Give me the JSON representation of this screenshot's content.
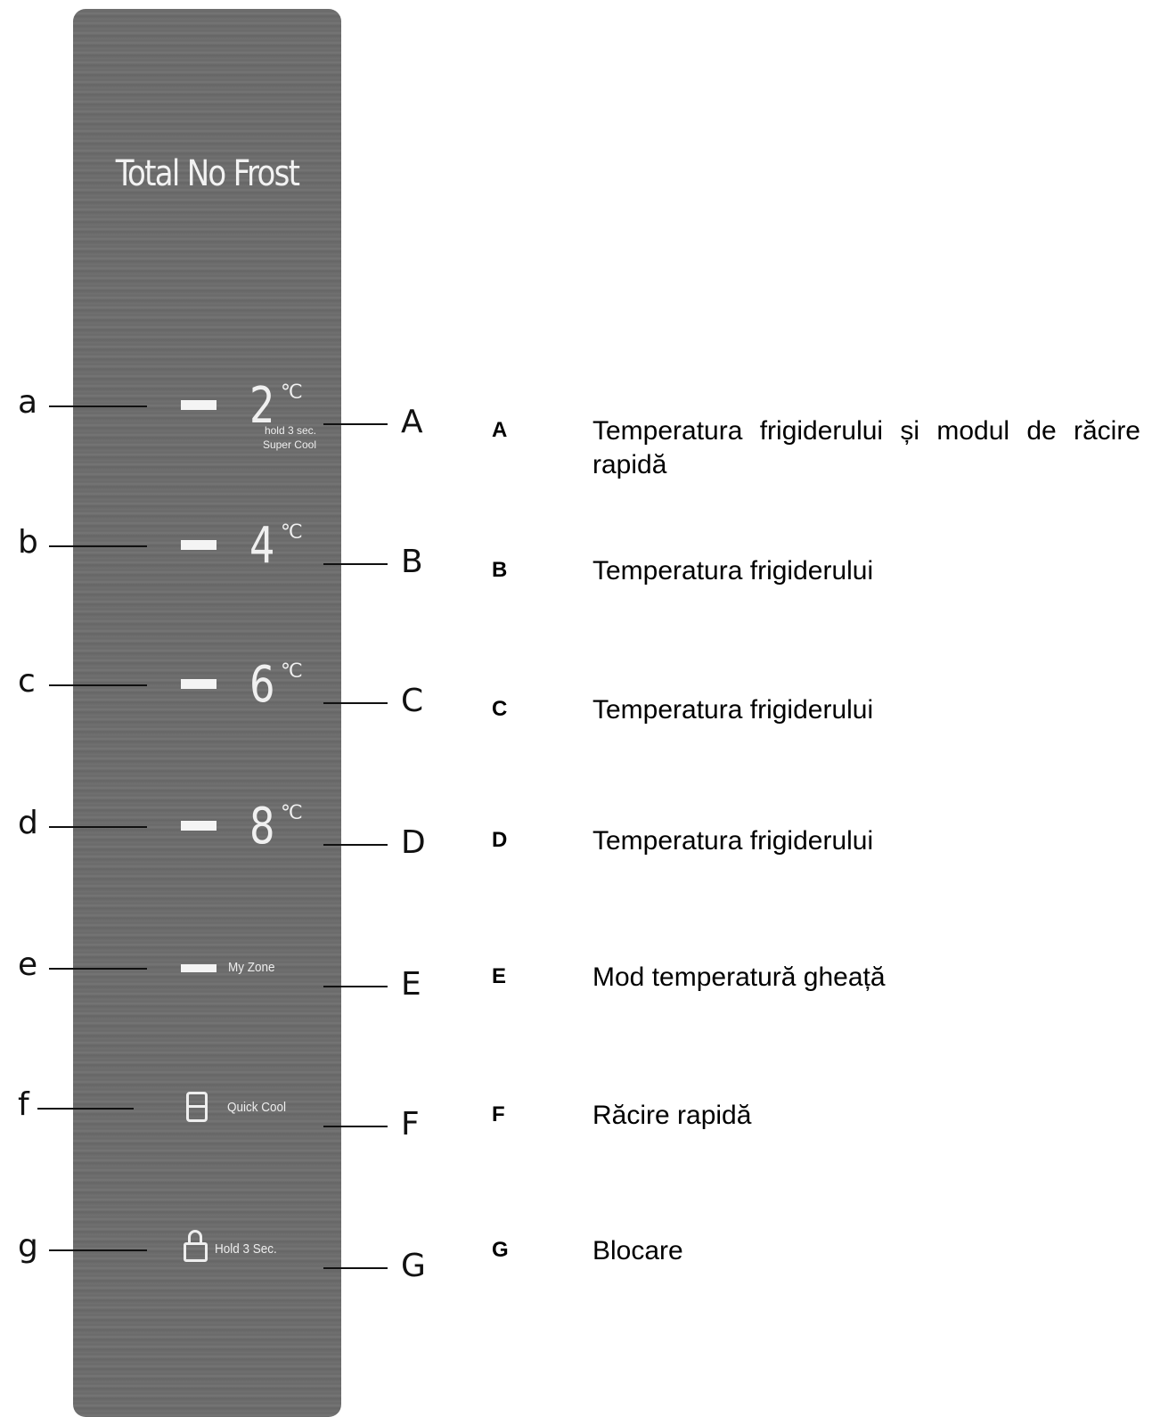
{
  "panel": {
    "title": "Total No Frost",
    "items": [
      {
        "left": "a",
        "value": "2",
        "unit": "℃",
        "caption": [
          "hold 3 sec.",
          "Super Cool"
        ],
        "right": "A"
      },
      {
        "left": "b",
        "value": "4",
        "unit": "℃",
        "right": "B"
      },
      {
        "left": "c",
        "value": "6",
        "unit": "℃",
        "right": "C"
      },
      {
        "left": "d",
        "value": "8",
        "unit": "℃",
        "right": "D"
      },
      {
        "left": "e",
        "label": "My Zone",
        "right": "E"
      },
      {
        "left": "f",
        "label": "Quick Cool",
        "right": "F"
      },
      {
        "left": "g",
        "label": "Hold 3 Sec.",
        "right": "G"
      }
    ]
  },
  "legend": [
    {
      "key": "A",
      "text": "Temperatura frigiderului și modul de răcire rapidă"
    },
    {
      "key": "B",
      "text": "Temperatura frigiderului"
    },
    {
      "key": "C",
      "text": "Temperatura frigiderului"
    },
    {
      "key": "D",
      "text": "Temperatura frigiderului"
    },
    {
      "key": "E",
      "text": "Mod temperatură gheață"
    },
    {
      "key": "F",
      "text": "Răcire rapidă"
    },
    {
      "key": "G",
      "text": "Blocare"
    }
  ]
}
